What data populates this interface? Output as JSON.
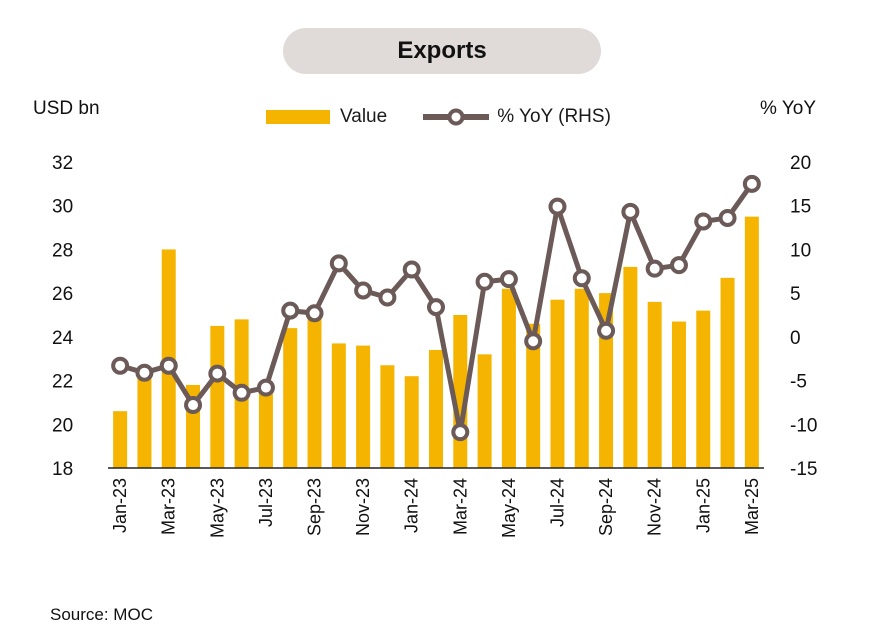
{
  "chart_data": {
    "type": "bar",
    "title": "Exports",
    "ylabel": "USD bn",
    "y2label": "% YoY",
    "ylim": [
      18,
      32
    ],
    "yticks": [
      18,
      20,
      22,
      24,
      26,
      28,
      30,
      32
    ],
    "y2lim": [
      -15,
      20
    ],
    "y2ticks": [
      -15,
      -10,
      -5,
      0,
      5,
      10,
      15,
      20
    ],
    "y2tick_labels": [
      "-15",
      "-10",
      "-5",
      "0",
      "5",
      "10",
      "15",
      "20"
    ],
    "categories": [
      "Jan-23",
      "Feb-23",
      "Mar-23",
      "Apr-23",
      "May-23",
      "Jun-23",
      "Jul-23",
      "Aug-23",
      "Sep-23",
      "Oct-23",
      "Nov-23",
      "Dec-23",
      "Jan-24",
      "Feb-24",
      "Mar-24",
      "Apr-24",
      "May-24",
      "Jun-24",
      "Jul-24",
      "Aug-24",
      "Sep-24",
      "Oct-24",
      "Nov-24",
      "Dec-24",
      "Jan-25",
      "Feb-25",
      "Mar-25"
    ],
    "xtick_labels": [
      "Jan-23",
      "Mar-23",
      "May-23",
      "Jul-23",
      "Sep-23",
      "Nov-23",
      "Jan-24",
      "Mar-24",
      "May-24",
      "Jul-24",
      "Sep-24",
      "Nov-24",
      "Jan-25",
      "Mar-25"
    ],
    "series": [
      {
        "name": "Value",
        "type": "bar",
        "axis": "left",
        "color": "#f5b400",
        "values": [
          20.6,
          22.2,
          28.0,
          21.8,
          24.5,
          24.8,
          21.9,
          24.4,
          25.0,
          23.7,
          23.6,
          22.7,
          22.2,
          23.4,
          25.0,
          23.2,
          26.2,
          24.6,
          25.7,
          26.2,
          26.0,
          27.2,
          25.6,
          24.7,
          25.2,
          26.7,
          29.5
        ]
      },
      {
        "name": "% YoY (RHS)",
        "type": "line",
        "axis": "right",
        "color": "#6b5a57",
        "values": [
          -3.3,
          -4.1,
          -3.3,
          -7.8,
          -4.2,
          -6.4,
          -5.8,
          3.0,
          2.7,
          8.4,
          5.3,
          4.5,
          7.7,
          3.4,
          -10.9,
          6.3,
          6.6,
          -0.5,
          14.9,
          6.7,
          0.7,
          14.3,
          7.8,
          8.2,
          13.2,
          13.6,
          17.5
        ]
      }
    ],
    "legend_placement": "top-center",
    "grid": false
  },
  "source_text": "Source: MOC"
}
